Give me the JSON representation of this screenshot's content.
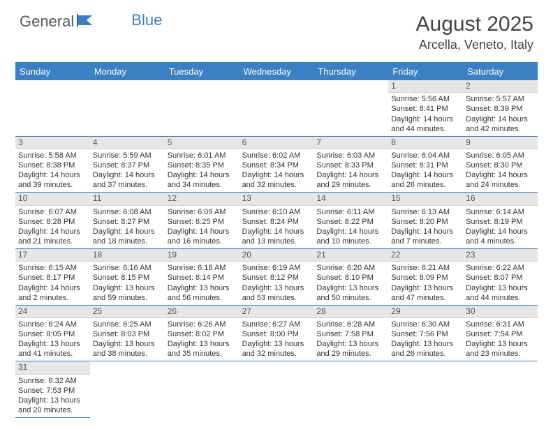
{
  "logo": {
    "part1": "General",
    "part2": "Blue"
  },
  "title": "August 2025",
  "location": "Arcella, Veneto, Italy",
  "day_names": [
    "Sunday",
    "Monday",
    "Tuesday",
    "Wednesday",
    "Thursday",
    "Friday",
    "Saturday"
  ],
  "colors": {
    "accent": "#3b7fc4",
    "header_bg": "#3b7fc4",
    "day_num_bg": "#e6e6e6",
    "text": "#333333"
  },
  "weeks": [
    [
      {
        "n": "",
        "sr": "",
        "ss": "",
        "dl": ""
      },
      {
        "n": "",
        "sr": "",
        "ss": "",
        "dl": ""
      },
      {
        "n": "",
        "sr": "",
        "ss": "",
        "dl": ""
      },
      {
        "n": "",
        "sr": "",
        "ss": "",
        "dl": ""
      },
      {
        "n": "",
        "sr": "",
        "ss": "",
        "dl": ""
      },
      {
        "n": "1",
        "sr": "Sunrise: 5:56 AM",
        "ss": "Sunset: 8:41 PM",
        "dl": "Daylight: 14 hours and 44 minutes."
      },
      {
        "n": "2",
        "sr": "Sunrise: 5:57 AM",
        "ss": "Sunset: 8:39 PM",
        "dl": "Daylight: 14 hours and 42 minutes."
      }
    ],
    [
      {
        "n": "3",
        "sr": "Sunrise: 5:58 AM",
        "ss": "Sunset: 8:38 PM",
        "dl": "Daylight: 14 hours and 39 minutes."
      },
      {
        "n": "4",
        "sr": "Sunrise: 5:59 AM",
        "ss": "Sunset: 8:37 PM",
        "dl": "Daylight: 14 hours and 37 minutes."
      },
      {
        "n": "5",
        "sr": "Sunrise: 6:01 AM",
        "ss": "Sunset: 8:35 PM",
        "dl": "Daylight: 14 hours and 34 minutes."
      },
      {
        "n": "6",
        "sr": "Sunrise: 6:02 AM",
        "ss": "Sunset: 8:34 PM",
        "dl": "Daylight: 14 hours and 32 minutes."
      },
      {
        "n": "7",
        "sr": "Sunrise: 6:03 AM",
        "ss": "Sunset: 8:33 PM",
        "dl": "Daylight: 14 hours and 29 minutes."
      },
      {
        "n": "8",
        "sr": "Sunrise: 6:04 AM",
        "ss": "Sunset: 8:31 PM",
        "dl": "Daylight: 14 hours and 26 minutes."
      },
      {
        "n": "9",
        "sr": "Sunrise: 6:05 AM",
        "ss": "Sunset: 8:30 PM",
        "dl": "Daylight: 14 hours and 24 minutes."
      }
    ],
    [
      {
        "n": "10",
        "sr": "Sunrise: 6:07 AM",
        "ss": "Sunset: 8:28 PM",
        "dl": "Daylight: 14 hours and 21 minutes."
      },
      {
        "n": "11",
        "sr": "Sunrise: 6:08 AM",
        "ss": "Sunset: 8:27 PM",
        "dl": "Daylight: 14 hours and 18 minutes."
      },
      {
        "n": "12",
        "sr": "Sunrise: 6:09 AM",
        "ss": "Sunset: 8:25 PM",
        "dl": "Daylight: 14 hours and 16 minutes."
      },
      {
        "n": "13",
        "sr": "Sunrise: 6:10 AM",
        "ss": "Sunset: 8:24 PM",
        "dl": "Daylight: 14 hours and 13 minutes."
      },
      {
        "n": "14",
        "sr": "Sunrise: 6:11 AM",
        "ss": "Sunset: 8:22 PM",
        "dl": "Daylight: 14 hours and 10 minutes."
      },
      {
        "n": "15",
        "sr": "Sunrise: 6:13 AM",
        "ss": "Sunset: 8:20 PM",
        "dl": "Daylight: 14 hours and 7 minutes."
      },
      {
        "n": "16",
        "sr": "Sunrise: 6:14 AM",
        "ss": "Sunset: 8:19 PM",
        "dl": "Daylight: 14 hours and 4 minutes."
      }
    ],
    [
      {
        "n": "17",
        "sr": "Sunrise: 6:15 AM",
        "ss": "Sunset: 8:17 PM",
        "dl": "Daylight: 14 hours and 2 minutes."
      },
      {
        "n": "18",
        "sr": "Sunrise: 6:16 AM",
        "ss": "Sunset: 8:15 PM",
        "dl": "Daylight: 13 hours and 59 minutes."
      },
      {
        "n": "19",
        "sr": "Sunrise: 6:18 AM",
        "ss": "Sunset: 8:14 PM",
        "dl": "Daylight: 13 hours and 56 minutes."
      },
      {
        "n": "20",
        "sr": "Sunrise: 6:19 AM",
        "ss": "Sunset: 8:12 PM",
        "dl": "Daylight: 13 hours and 53 minutes."
      },
      {
        "n": "21",
        "sr": "Sunrise: 6:20 AM",
        "ss": "Sunset: 8:10 PM",
        "dl": "Daylight: 13 hours and 50 minutes."
      },
      {
        "n": "22",
        "sr": "Sunrise: 6:21 AM",
        "ss": "Sunset: 8:09 PM",
        "dl": "Daylight: 13 hours and 47 minutes."
      },
      {
        "n": "23",
        "sr": "Sunrise: 6:22 AM",
        "ss": "Sunset: 8:07 PM",
        "dl": "Daylight: 13 hours and 44 minutes."
      }
    ],
    [
      {
        "n": "24",
        "sr": "Sunrise: 6:24 AM",
        "ss": "Sunset: 8:05 PM",
        "dl": "Daylight: 13 hours and 41 minutes."
      },
      {
        "n": "25",
        "sr": "Sunrise: 6:25 AM",
        "ss": "Sunset: 8:03 PM",
        "dl": "Daylight: 13 hours and 38 minutes."
      },
      {
        "n": "26",
        "sr": "Sunrise: 6:26 AM",
        "ss": "Sunset: 8:02 PM",
        "dl": "Daylight: 13 hours and 35 minutes."
      },
      {
        "n": "27",
        "sr": "Sunrise: 6:27 AM",
        "ss": "Sunset: 8:00 PM",
        "dl": "Daylight: 13 hours and 32 minutes."
      },
      {
        "n": "28",
        "sr": "Sunrise: 6:28 AM",
        "ss": "Sunset: 7:58 PM",
        "dl": "Daylight: 13 hours and 29 minutes."
      },
      {
        "n": "29",
        "sr": "Sunrise: 6:30 AM",
        "ss": "Sunset: 7:56 PM",
        "dl": "Daylight: 13 hours and 26 minutes."
      },
      {
        "n": "30",
        "sr": "Sunrise: 6:31 AM",
        "ss": "Sunset: 7:54 PM",
        "dl": "Daylight: 13 hours and 23 minutes."
      }
    ],
    [
      {
        "n": "31",
        "sr": "Sunrise: 6:32 AM",
        "ss": "Sunset: 7:53 PM",
        "dl": "Daylight: 13 hours and 20 minutes."
      },
      {
        "n": "",
        "sr": "",
        "ss": "",
        "dl": ""
      },
      {
        "n": "",
        "sr": "",
        "ss": "",
        "dl": ""
      },
      {
        "n": "",
        "sr": "",
        "ss": "",
        "dl": ""
      },
      {
        "n": "",
        "sr": "",
        "ss": "",
        "dl": ""
      },
      {
        "n": "",
        "sr": "",
        "ss": "",
        "dl": ""
      },
      {
        "n": "",
        "sr": "",
        "ss": "",
        "dl": ""
      }
    ]
  ]
}
